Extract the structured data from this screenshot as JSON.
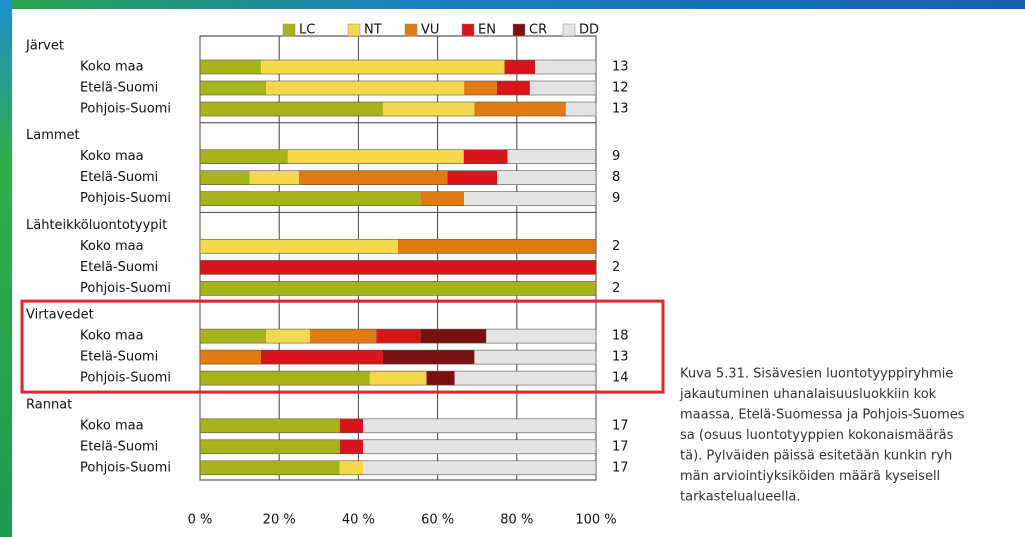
{
  "chart_data": {
    "type": "bar",
    "orientation": "horizontal",
    "stacked": true,
    "groups": [
      "Järvet",
      "Lammet",
      "Lähteikköluontotyypit",
      "Virtavedet",
      "Rannat"
    ],
    "categories": [
      "Koko maa",
      "Etelä-Suomi",
      "Pohjois-Suomi",
      "Koko maa",
      "Etelä-Suomi",
      "Pohjois-Suomi",
      "Koko maa",
      "Etelä-Suomi",
      "Pohjois-Suomi",
      "Koko maa",
      "Etelä-Suomi",
      "Pohjois-Suomi",
      "Koko maa",
      "Etelä-Suomi",
      "Pohjois-Suomi"
    ],
    "series": [
      {
        "name": "LC",
        "color": "#a6b41c",
        "values": [
          15.4,
          16.7,
          46.2,
          22.2,
          12.5,
          55.6,
          0,
          0,
          100,
          16.7,
          0,
          42.9,
          35.3,
          35.3,
          35.3
        ]
      },
      {
        "name": "NT",
        "color": "#f6d84c",
        "values": [
          61.5,
          50,
          23.1,
          44.4,
          12.5,
          0,
          50,
          0,
          0,
          11.1,
          0,
          14.3,
          0,
          0,
          5.9
        ]
      },
      {
        "name": "VU",
        "color": "#e07b12",
        "values": [
          0,
          8.3,
          23.1,
          0,
          37.5,
          11.1,
          50,
          0,
          0,
          16.7,
          15.4,
          0,
          0,
          0,
          0
        ]
      },
      {
        "name": "EN",
        "color": "#d7151b",
        "values": [
          7.7,
          8.3,
          0,
          11.1,
          12.5,
          0,
          0,
          100,
          0,
          11.1,
          30.8,
          0,
          5.9,
          5.9,
          0
        ]
      },
      {
        "name": "CR",
        "color": "#7a1111",
        "values": [
          0,
          0,
          0,
          0,
          0,
          0,
          0,
          0,
          0,
          16.7,
          23.1,
          7.1,
          0,
          0,
          0
        ]
      },
      {
        "name": "DD",
        "color": "#e4e4e4",
        "values": [
          15.4,
          16.7,
          7.7,
          22.2,
          25,
          33.3,
          0,
          0,
          0,
          27.8,
          30.8,
          35.7,
          58.8,
          58.8,
          58.8
        ]
      }
    ],
    "counts": [
      13,
      12,
      13,
      9,
      8,
      9,
      2,
      2,
      2,
      18,
      13,
      14,
      17,
      17,
      17
    ],
    "xlim": [
      0,
      100
    ],
    "xticks": [
      {
        "value": 0,
        "label": "0 %"
      },
      {
        "value": 20,
        "label": "20 %"
      },
      {
        "value": 40,
        "label": "40 %"
      },
      {
        "value": 60,
        "label": "60 %"
      },
      {
        "value": 80,
        "label": "80 %"
      },
      {
        "value": 100,
        "label": "100 %"
      }
    ],
    "grid": true,
    "highlight_group": 3,
    "caption": [
      "Kuva 5.31. Sisävesien luontotyyppiryhmie",
      "jakautuminen uhanalaisuusluokkiin kok",
      "maassa, Etelä-Suomessa ja Pohjois-Suomes",
      "sa (osuus luontotyyppien kokonaismääräs",
      "tä). Pylväiden päissä esitetään kunkin ryh",
      "män arviointiyksiköiden määrä kyseisell",
      "tarkastelualueella."
    ]
  }
}
